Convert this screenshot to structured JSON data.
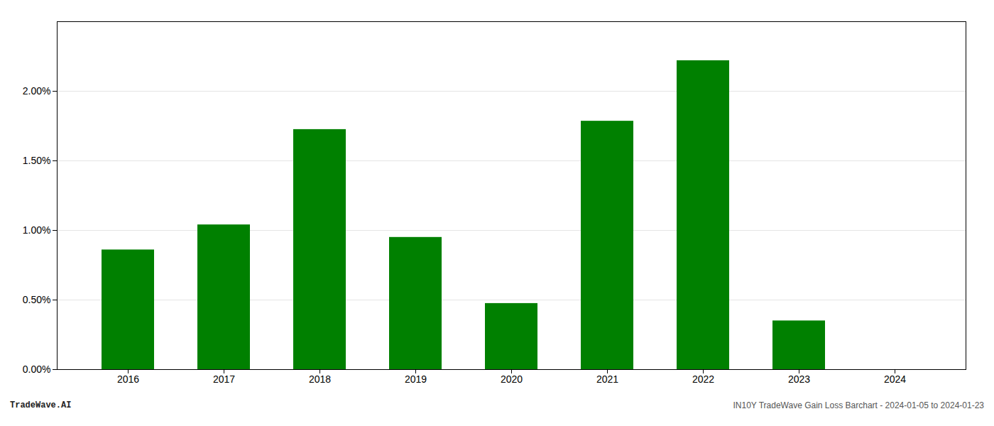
{
  "chart_data": {
    "type": "bar",
    "categories": [
      "2016",
      "2017",
      "2018",
      "2019",
      "2020",
      "2021",
      "2022",
      "2023",
      "2024"
    ],
    "values": [
      0.0086,
      0.0104,
      0.01725,
      0.0095,
      0.00475,
      0.01785,
      0.0222,
      0.0035,
      0.0
    ],
    "color": "#008000",
    "ylim": [
      0,
      0.025
    ],
    "yticks": [
      {
        "value": 0.0,
        "label": "0.00%"
      },
      {
        "value": 0.005,
        "label": "0.50%"
      },
      {
        "value": 0.01,
        "label": "1.00%"
      },
      {
        "value": 0.015,
        "label": "1.50%"
      },
      {
        "value": 0.02,
        "label": "2.00%"
      }
    ],
    "grid": true,
    "annotations": [
      "TradeWave.AI",
      "IN10Y TradeWave Gain Loss Barchart - 2024-01-05 to 2024-01-23"
    ]
  }
}
